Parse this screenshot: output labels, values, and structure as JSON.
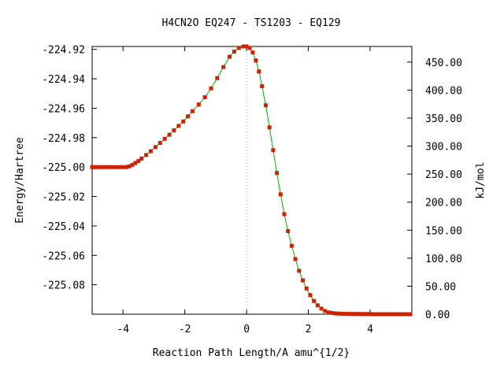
{
  "chart_data": {
    "type": "line",
    "title": "H4CN2O   EQ247 - TS1203 - EQ129",
    "xlabel": "Reaction Path Length/A amu^{1/2}",
    "ylabel": "Energy/Hartree",
    "y2label": "kJ/mol",
    "xlim": [
      -5.0,
      5.35
    ],
    "ylim": [
      -225.1,
      -224.918
    ],
    "y2lim": [
      0.0,
      477.85
    ],
    "x_ticks": [
      "-4",
      "-2",
      "0",
      "2",
      "4"
    ],
    "x_tick_values": [
      -4,
      -2,
      0,
      2,
      4
    ],
    "y_ticks": [
      "-224.92",
      "-224.94",
      "-224.96",
      "-224.98",
      "-225.00",
      "-225.02",
      "-225.04",
      "-225.06",
      "-225.08"
    ],
    "y_tick_values": [
      -224.92,
      -224.94,
      -224.96,
      -224.98,
      -225.0,
      -225.02,
      -225.04,
      -225.06,
      -225.08
    ],
    "y2_ticks": [
      "450.00",
      "400.00",
      "350.00",
      "300.00",
      "250.00",
      "200.00",
      "150.00",
      "100.00",
      "50.00",
      "0.00"
    ],
    "y2_tick_values": [
      450,
      400,
      350,
      300,
      250,
      200,
      150,
      100,
      50,
      0
    ],
    "ts_x": 0.0,
    "line_color": "#00b000",
    "marker_color": "#cc2200",
    "vline_color": "#999999",
    "series": [
      {
        "x": [
          -5.0,
          -4.9,
          -4.8,
          -4.7,
          -4.6,
          -4.5,
          -4.4,
          -4.3,
          -4.2,
          -4.1,
          -4.0,
          -3.9,
          -3.8,
          -3.7,
          -3.6,
          -3.5,
          -3.4,
          -3.25,
          -3.1,
          -2.95,
          -2.8,
          -2.65,
          -2.5,
          -2.35,
          -2.2,
          -2.05,
          -1.9,
          -1.75,
          -1.55,
          -1.35,
          -1.15,
          -0.95,
          -0.75,
          -0.55,
          -0.4,
          -0.25,
          -0.1,
          0.0,
          0.1,
          0.2,
          0.3,
          0.4,
          0.5,
          0.62,
          0.74,
          0.86,
          0.98,
          1.1,
          1.22,
          1.34,
          1.46,
          1.58,
          1.7,
          1.82,
          1.94,
          2.06,
          2.18,
          2.3,
          2.42,
          2.54,
          2.66,
          2.78,
          2.9,
          3.0,
          3.1,
          3.2,
          3.3,
          3.4,
          3.5,
          3.6,
          3.7,
          3.8,
          3.9,
          4.0,
          4.1,
          4.2,
          4.3,
          4.4,
          4.5,
          4.6,
          4.7,
          4.8,
          4.9,
          5.0,
          5.1,
          5.2,
          5.3
        ],
        "y": [
          -225.0,
          -225.0,
          -225.0,
          -225.0,
          -225.0,
          -225.0,
          -225.0,
          -225.0,
          -225.0,
          -225.0,
          -225.0,
          -225.0,
          -224.9995,
          -224.9985,
          -224.9972,
          -224.9958,
          -224.9942,
          -224.9918,
          -224.9892,
          -224.9864,
          -224.9836,
          -224.9808,
          -224.978,
          -224.975,
          -224.972,
          -224.969,
          -224.9655,
          -224.962,
          -224.9575,
          -224.9525,
          -224.9465,
          -224.9395,
          -224.932,
          -224.925,
          -224.9215,
          -224.919,
          -224.918,
          -224.918,
          -224.919,
          -224.922,
          -224.9275,
          -224.935,
          -224.945,
          -224.958,
          -224.973,
          -224.9885,
          -225.004,
          -225.0185,
          -225.032,
          -225.0435,
          -225.0535,
          -225.0625,
          -225.0705,
          -225.077,
          -225.0825,
          -225.087,
          -225.091,
          -225.094,
          -225.0962,
          -225.0978,
          -225.0988,
          -225.0992,
          -225.0995,
          -225.0996,
          -225.0997,
          -225.0997,
          -225.0998,
          -225.0998,
          -225.0998,
          -225.0998,
          -225.0999,
          -225.0999,
          -225.0999,
          -225.0999,
          -225.1,
          -225.1,
          -225.1,
          -225.1,
          -225.1,
          -225.1,
          -225.1,
          -225.1,
          -225.1,
          -225.1,
          -225.1,
          -225.1,
          -225.1
        ]
      }
    ]
  }
}
